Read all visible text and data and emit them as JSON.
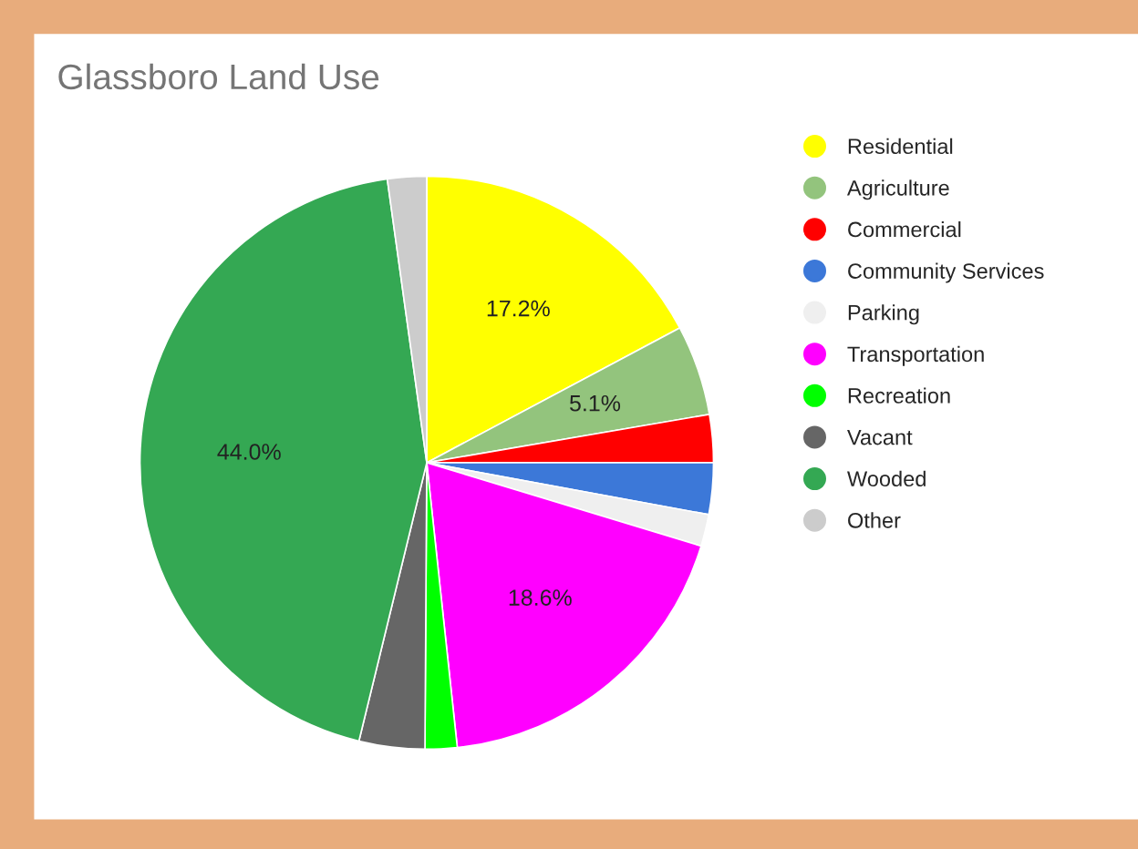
{
  "chart_data": {
    "type": "pie",
    "title": "Glassboro Land Use",
    "categories": [
      "Residential",
      "Agriculture",
      "Commercial",
      "Community Services",
      "Parking",
      "Transportation",
      "Recreation",
      "Vacant",
      "Wooded",
      "Other"
    ],
    "values": [
      17.2,
      5.1,
      2.7,
      2.9,
      1.8,
      18.6,
      1.8,
      3.7,
      44.0,
      2.2
    ],
    "colors": [
      "#ffff00",
      "#93c47d",
      "#ff0000",
      "#3c78d8",
      "#efefef",
      "#ff00ff",
      "#00ff00",
      "#666666",
      "#34a853",
      "#cccccc"
    ],
    "value_labels": [
      "17.2%",
      "5.1%",
      null,
      null,
      null,
      "18.6%",
      null,
      null,
      "44.0%",
      null
    ],
    "legend": "right"
  }
}
